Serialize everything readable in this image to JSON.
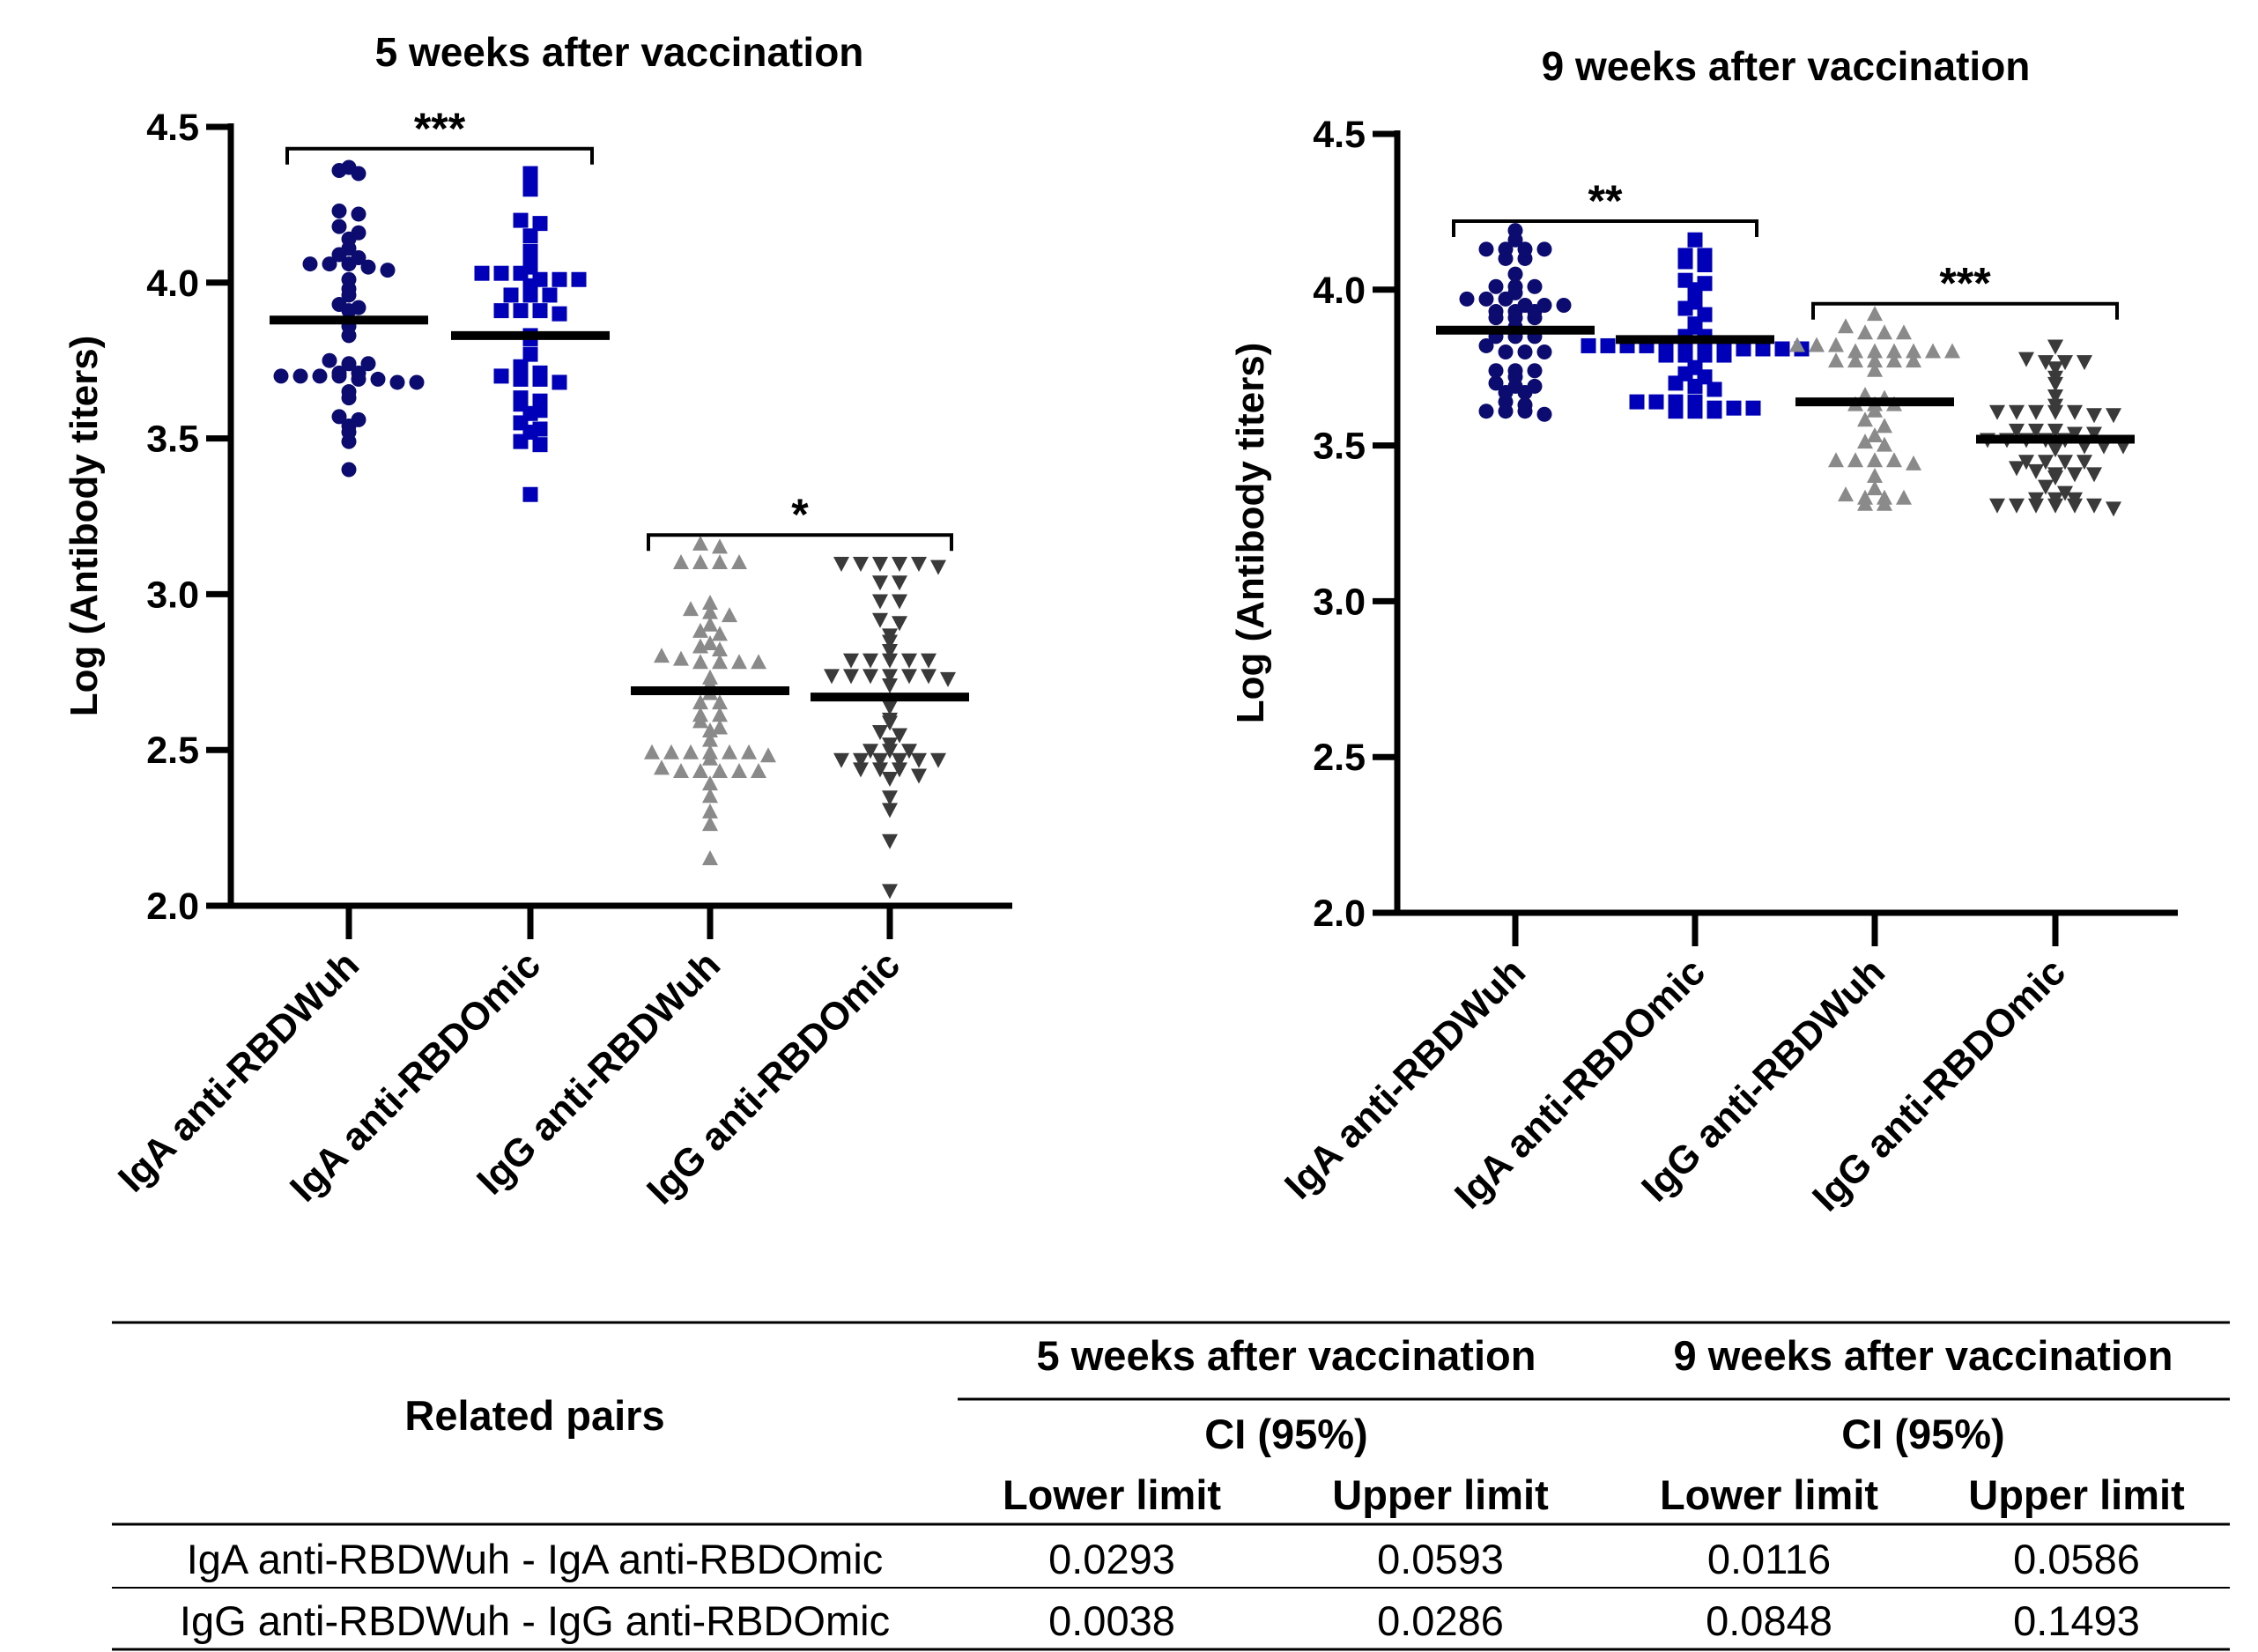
{
  "chart_data": [
    {
      "type": "scatter",
      "title": "5 weeks after vaccination",
      "ylabel": "Log (Antibody titers)",
      "ylim": [
        2.0,
        4.5
      ],
      "yticks": [
        "2.0",
        "2.5",
        "3.0",
        "3.5",
        "4.0",
        "4.5"
      ],
      "categories": [
        "IgA anti-RBDWuh",
        "IgA anti-RBDOmic",
        "IgG anti-RBDWuh",
        "IgG anti-RBDOmic"
      ],
      "series": [
        {
          "marker": "circle",
          "color": "#0b0b70",
          "mean": 3.88,
          "values": [
            4.37,
            4.36,
            4.35,
            4.23,
            4.22,
            4.18,
            4.16,
            4.14,
            4.11,
            4.09,
            4.08,
            4.06,
            4.06,
            4.06,
            4.05,
            4.04,
            4.01,
            3.98,
            3.96,
            3.93,
            3.92,
            3.91,
            3.86,
            3.83,
            3.75,
            3.74,
            3.74,
            3.71,
            3.71,
            3.7,
            3.7,
            3.7,
            3.7,
            3.69,
            3.69,
            3.68,
            3.68,
            3.65,
            3.63,
            3.57,
            3.56,
            3.54,
            3.52,
            3.49,
            3.4
          ]
        },
        {
          "marker": "square",
          "color": "#0000b8",
          "mean": 3.83,
          "values": [
            4.35,
            4.31,
            4.3,
            4.2,
            4.19,
            4.15,
            4.1,
            4.09,
            4.05,
            4.03,
            4.03,
            4.03,
            4.01,
            4.01,
            4.01,
            3.99,
            3.96,
            3.96,
            3.96,
            3.91,
            3.91,
            3.91,
            3.9,
            3.83,
            3.82,
            3.77,
            3.73,
            3.71,
            3.7,
            3.69,
            3.69,
            3.68,
            3.63,
            3.62,
            3.61,
            3.59,
            3.58,
            3.55,
            3.53,
            3.52,
            3.49,
            3.48,
            3.32
          ]
        },
        {
          "marker": "triangle-up",
          "color": "#8a8a8a",
          "mean": 2.69,
          "values": [
            3.16,
            3.15,
            3.1,
            3.1,
            3.1,
            3.1,
            2.97,
            2.95,
            2.94,
            2.93,
            2.9,
            2.88,
            2.87,
            2.84,
            2.83,
            2.82,
            2.8,
            2.79,
            2.78,
            2.78,
            2.78,
            2.78,
            2.73,
            2.71,
            2.68,
            2.65,
            2.65,
            2.61,
            2.61,
            2.59,
            2.57,
            2.56,
            2.53,
            2.49,
            2.49,
            2.49,
            2.49,
            2.49,
            2.49,
            2.48,
            2.47,
            2.44,
            2.43,
            2.43,
            2.43,
            2.43,
            2.43,
            2.39,
            2.35,
            2.3,
            2.26,
            2.15
          ]
        },
        {
          "marker": "triangle-down",
          "color": "#3a3a3a",
          "mean": 2.67,
          "values": [
            3.1,
            3.1,
            3.1,
            3.1,
            3.1,
            3.09,
            3.04,
            3.04,
            2.98,
            2.98,
            2.92,
            2.91,
            2.87,
            2.85,
            2.82,
            2.79,
            2.79,
            2.79,
            2.79,
            2.79,
            2.74,
            2.74,
            2.74,
            2.74,
            2.74,
            2.74,
            2.73,
            2.71,
            2.64,
            2.6,
            2.59,
            2.56,
            2.55,
            2.52,
            2.5,
            2.5,
            2.5,
            2.47,
            2.47,
            2.47,
            2.47,
            2.47,
            2.47,
            2.44,
            2.44,
            2.44,
            2.42,
            2.41,
            2.35,
            2.31,
            2.21,
            2.05
          ]
        }
      ],
      "significance": [
        {
          "from": 0,
          "to": 1,
          "y": 4.43,
          "label": "***"
        },
        {
          "from": 2,
          "to": 3,
          "y": 3.19,
          "label": "*"
        }
      ]
    },
    {
      "type": "scatter",
      "title": "9 weeks after vaccination",
      "ylabel": "Log (Antibody titers)",
      "ylim": [
        2.0,
        4.5
      ],
      "yticks": [
        "2.0",
        "2.5",
        "3.0",
        "3.5",
        "4.0",
        "4.5"
      ],
      "categories": [
        "IgA anti-RBDWuh",
        "IgA anti-RBDOmic",
        "IgG anti-RBDWuh",
        "IgG anti-RBDOmic"
      ],
      "series": [
        {
          "marker": "circle",
          "color": "#0b0b70",
          "mean": 3.87,
          "values": [
            4.19,
            4.16,
            4.13,
            4.13,
            4.13,
            4.13,
            4.1,
            4.1,
            4.05,
            4.01,
            4.01,
            4.01,
            3.99,
            3.97,
            3.97,
            3.97,
            3.95,
            3.95,
            3.95,
            3.93,
            3.93,
            3.93,
            3.91,
            3.91,
            3.91,
            3.88,
            3.85,
            3.85,
            3.85,
            3.82,
            3.8,
            3.8,
            3.8,
            3.74,
            3.74,
            3.74,
            3.72,
            3.7,
            3.69,
            3.69,
            3.67,
            3.67,
            3.64,
            3.63,
            3.61,
            3.61,
            3.61,
            3.6
          ]
        },
        {
          "marker": "square",
          "color": "#0000b8",
          "mean": 3.84,
          "values": [
            4.16,
            4.11,
            4.11,
            4.09,
            4.08,
            4.03,
            4.02,
            4.0,
            3.96,
            3.94,
            3.92,
            3.89,
            3.88,
            3.85,
            3.85,
            3.82,
            3.82,
            3.82,
            3.82,
            3.82,
            3.82,
            3.81,
            3.81,
            3.81,
            3.81,
            3.81,
            3.81,
            3.79,
            3.79,
            3.79,
            3.79,
            3.75,
            3.73,
            3.72,
            3.7,
            3.69,
            3.68,
            3.64,
            3.64,
            3.64,
            3.64,
            3.62,
            3.62,
            3.62,
            3.61,
            3.61,
            3.61
          ]
        },
        {
          "marker": "triangle-up",
          "color": "#8a8a8a",
          "mean": 3.64,
          "values": [
            3.92,
            3.88,
            3.86,
            3.86,
            3.86,
            3.82,
            3.82,
            3.82,
            3.8,
            3.8,
            3.8,
            3.8,
            3.8,
            3.8,
            3.77,
            3.77,
            3.77,
            3.77,
            3.77,
            3.74,
            3.66,
            3.65,
            3.63,
            3.63,
            3.63,
            3.61,
            3.58,
            3.56,
            3.53,
            3.51,
            3.5,
            3.45,
            3.45,
            3.45,
            3.45,
            3.44,
            3.4,
            3.36,
            3.34,
            3.33,
            3.33,
            3.33,
            3.31,
            3.31
          ]
        },
        {
          "marker": "triangle-down",
          "color": "#3a3a3a",
          "mean": 3.52,
          "values": [
            3.82,
            3.78,
            3.77,
            3.77,
            3.77,
            3.75,
            3.72,
            3.7,
            3.66,
            3.63,
            3.61,
            3.61,
            3.61,
            3.61,
            3.61,
            3.6,
            3.6,
            3.55,
            3.55,
            3.55,
            3.54,
            3.54,
            3.52,
            3.52,
            3.52,
            3.52,
            3.52,
            3.5,
            3.5,
            3.5,
            3.49,
            3.45,
            3.45,
            3.45,
            3.45,
            3.43,
            3.42,
            3.41,
            3.41,
            3.41,
            3.4,
            3.37,
            3.35,
            3.33,
            3.33,
            3.33,
            3.31,
            3.31,
            3.31,
            3.31,
            3.31,
            3.31,
            3.3
          ]
        }
      ],
      "significance": [
        {
          "from": 0,
          "to": 1,
          "y": 4.22,
          "label": "**"
        },
        {
          "from": 2,
          "to": 3,
          "y": 3.955,
          "label": "***"
        }
      ]
    }
  ],
  "table": {
    "row_header": "Related pairs",
    "groups": [
      "5 weeks after vaccination",
      "9 weeks after vaccination"
    ],
    "ci_label": "CI (95%)",
    "columns": [
      "Lower limit",
      "Upper limit",
      "Lower limit",
      "Upper limit"
    ],
    "rows": [
      {
        "pair": "IgA anti-RBDWuh - IgA anti-RBDOmic",
        "values": [
          "0.0293",
          "0.0593",
          "0.0116",
          "0.0586"
        ]
      },
      {
        "pair": "IgG anti-RBDWuh - IgG anti-RBDOmic",
        "values": [
          "0.0038",
          "0.0286",
          "0.0848",
          "0.1493"
        ]
      }
    ]
  }
}
